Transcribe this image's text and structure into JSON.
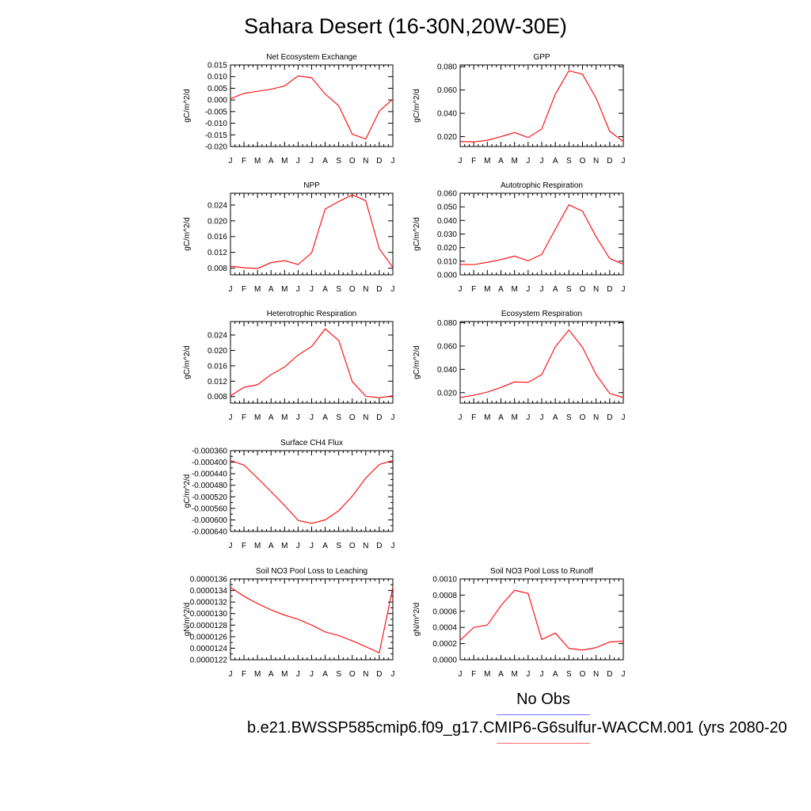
{
  "figure": {
    "title": "Sahara Desert (16-30N,20W-30E)",
    "legend_label": "No Obs",
    "case_name": "b.e21.BWSSP585cmip6.f09_g17.CMIP6-G6sulfur-WACCM.001 (yrs 2080-20",
    "colors": {
      "series": "#ff0000",
      "legend_top": "#7070ff",
      "legend_bottom": "#ff7070"
    }
  },
  "chart_data": [
    {
      "type": "line",
      "title": "Net Ecosystem Exchange",
      "ylabel": "gC/m^2/d",
      "categories": [
        "J",
        "F",
        "M",
        "A",
        "M",
        "J",
        "J",
        "A",
        "S",
        "O",
        "N",
        "D",
        "J"
      ],
      "values": [
        0.0005,
        0.0028,
        0.0037,
        0.0046,
        0.006,
        0.0103,
        0.0095,
        0.0025,
        -0.0025,
        -0.0147,
        -0.0168,
        -0.0048,
        0.0003
      ],
      "ylim": [
        -0.02,
        0.015
      ],
      "yticks": [
        "-0.020",
        "-0.015",
        "-0.010",
        "-0.005",
        "0.000",
        "0.005",
        "0.010",
        "0.015"
      ]
    },
    {
      "type": "line",
      "title": "GPP",
      "ylabel": "gC/m^2/d",
      "categories": [
        "J",
        "F",
        "M",
        "A",
        "M",
        "J",
        "J",
        "A",
        "S",
        "O",
        "N",
        "D",
        "J"
      ],
      "values": [
        0.0158,
        0.0155,
        0.0168,
        0.02,
        0.0235,
        0.0192,
        0.0265,
        0.0565,
        0.0765,
        0.0735,
        0.053,
        0.0245,
        0.0158
      ],
      "ylim": [
        0.0115,
        0.0815
      ],
      "yticks": [
        "0.020",
        "0.040",
        "0.060",
        "0.080"
      ]
    },
    {
      "type": "line",
      "title": "NPP",
      "ylabel": "gC/m^2/d",
      "categories": [
        "J",
        "F",
        "M",
        "A",
        "M",
        "J",
        "J",
        "A",
        "S",
        "O",
        "N",
        "D",
        "J"
      ],
      "values": [
        0.0085,
        0.0081,
        0.0079,
        0.0094,
        0.0099,
        0.0089,
        0.0119,
        0.023,
        0.0249,
        0.0266,
        0.0251,
        0.0129,
        0.0082
      ],
      "ylim": [
        0.0063,
        0.027
      ],
      "yticks": [
        "0.008",
        "0.012",
        "0.016",
        "0.020",
        "0.024"
      ]
    },
    {
      "type": "line",
      "title": "Autotrophic Respiration",
      "ylabel": "gC/m^2/d",
      "categories": [
        "J",
        "F",
        "M",
        "A",
        "M",
        "J",
        "J",
        "A",
        "S",
        "O",
        "N",
        "D",
        "J"
      ],
      "values": [
        0.0077,
        0.0075,
        0.0092,
        0.0112,
        0.0138,
        0.0103,
        0.015,
        0.0335,
        0.0515,
        0.0468,
        0.028,
        0.012,
        0.0078
      ],
      "ylim": [
        0.0,
        0.06
      ],
      "yticks": [
        "0.000",
        "0.010",
        "0.020",
        "0.030",
        "0.040",
        "0.050",
        "0.060"
      ]
    },
    {
      "type": "line",
      "title": "Heterotrophic Respiration",
      "ylabel": "gC/m^2/d",
      "categories": [
        "J",
        "F",
        "M",
        "A",
        "M",
        "J",
        "J",
        "A",
        "S",
        "O",
        "N",
        "D",
        "J"
      ],
      "values": [
        0.0082,
        0.0104,
        0.0111,
        0.0137,
        0.0157,
        0.0188,
        0.021,
        0.0256,
        0.0226,
        0.0119,
        0.0081,
        0.0077,
        0.0082
      ],
      "ylim": [
        0.0063,
        0.0275
      ],
      "yticks": [
        "0.008",
        "0.012",
        "0.016",
        "0.020",
        "0.024"
      ]
    },
    {
      "type": "line",
      "title": "Ecosystem Respiration",
      "ylabel": "gC/m^2/d",
      "categories": [
        "J",
        "F",
        "M",
        "A",
        "M",
        "J",
        "J",
        "A",
        "S",
        "O",
        "N",
        "D",
        "J"
      ],
      "values": [
        0.0158,
        0.0178,
        0.0205,
        0.0245,
        0.0292,
        0.0288,
        0.0355,
        0.0593,
        0.0738,
        0.0588,
        0.0355,
        0.0193,
        0.0158
      ],
      "ylim": [
        0.011,
        0.081
      ],
      "yticks": [
        "0.020",
        "0.040",
        "0.060",
        "0.080"
      ]
    },
    {
      "type": "line",
      "title": "Surface CH4 Flux",
      "ylabel": "gC/m^2/d",
      "categories": [
        "J",
        "F",
        "M",
        "A",
        "M",
        "J",
        "J",
        "A",
        "S",
        "O",
        "N",
        "D",
        "J"
      ],
      "values": [
        -0.000394,
        -0.00041,
        -0.000455,
        -0.000502,
        -0.00055,
        -0.000602,
        -0.000612,
        -0.0006,
        -0.000568,
        -0.000518,
        -0.000455,
        -0.000408,
        -0.000394
      ],
      "ylim": [
        -0.00064,
        -0.00036
      ],
      "yticks": [
        "-0.000640",
        "-0.000600",
        "-0.000560",
        "-0.000520",
        "-0.000480",
        "-0.000440",
        "-0.000400",
        "-0.000360"
      ],
      "minor_yticks": [
        "-0.000620",
        "-0.000580",
        "-0.000540",
        "-0.000500",
        "-0.000460",
        "-0.000420",
        "-0.000380"
      ]
    },
    {
      "type": "line",
      "title": "Soil NO3 Pool Loss to Leaching",
      "ylabel": "gN/m^2/d",
      "categories": [
        "J",
        "F",
        "M",
        "A",
        "M",
        "J",
        "J",
        "A",
        "S",
        "O",
        "N",
        "D",
        "J"
      ],
      "values": [
        1.34545e-05,
        1.33e-05,
        1.31727e-05,
        1.30636e-05,
        1.29727e-05,
        1.29e-05,
        1.28e-05,
        1.26818e-05,
        1.26182e-05,
        1.25273e-05,
        1.24273e-05,
        1.23182e-05,
        1.34545e-05
      ],
      "ylim": [
        1.22e-05,
        1.36e-05
      ],
      "yticks": [
        "0.0000122",
        "0.0000124",
        "0.0000126",
        "0.0000128",
        "0.0000130",
        "0.0000132",
        "0.0000134",
        "0.0000136"
      ],
      "minor_yticks": [
        "0.0000123",
        "0.0000125",
        "0.0000127",
        "0.0000129",
        "0.0000131",
        "0.0000133",
        "0.0000135"
      ]
    },
    {
      "type": "line",
      "title": "Soil NO3 Pool Loss to Runoff",
      "ylabel": "gN/m^2/d",
      "categories": [
        "J",
        "F",
        "M",
        "A",
        "M",
        "J",
        "J",
        "A",
        "S",
        "O",
        "N",
        "D",
        "J"
      ],
      "values": [
        0.00024,
        0.0004,
        0.00043,
        0.00067,
        0.00086,
        0.00082,
        0.00025,
        0.00033,
        0.00014,
        0.00012,
        0.00015,
        0.00022,
        0.00023
      ],
      "ylim": [
        0.0,
        0.001
      ],
      "yticks": [
        "0.0000",
        "0.0002",
        "0.0004",
        "0.0006",
        "0.0008",
        "0.0010"
      ]
    }
  ]
}
